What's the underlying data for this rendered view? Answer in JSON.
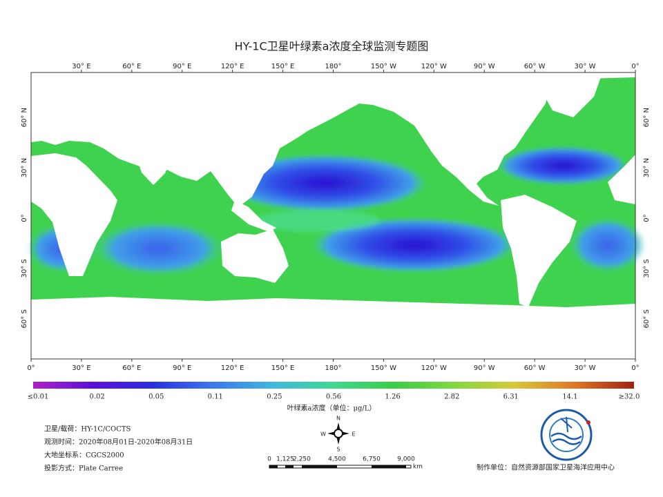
{
  "title": "HY-1C卫星叶绿素a浓度全球监测专题图",
  "map": {
    "top_lon_labels": [
      "30° E",
      "60° E",
      "90° E",
      "120° E",
      "150° E",
      "180°",
      "150° W",
      "120° W",
      "90° W",
      "60° W",
      "30° W",
      "0°"
    ],
    "bottom_lon_labels": [
      "0°",
      "30° E",
      "60° E",
      "90° E",
      "120° E",
      "150° E",
      "180°",
      "150° W",
      "120° W",
      "90° W",
      "60° W",
      "30° W",
      "0°"
    ],
    "lat_labels": [
      "60° N",
      "30° N",
      "0°",
      "30° S",
      "60° S"
    ]
  },
  "legend": {
    "labels": [
      "≤0.01",
      "0.02",
      "0.05",
      "0.11",
      "0.25",
      "0.56",
      "1.26",
      "2.82",
      "6.31",
      "14.1",
      "≥32.0"
    ],
    "caption": "叶绿素a浓度（单位：μg/L）"
  },
  "info": [
    "卫星/载荷：HY-1C/COCTS",
    "观测时间：2020年08月01日-2020年08月31日",
    "大地坐标系：CGCS2000",
    "投影方式：Plate Carree"
  ],
  "compass": {
    "n": "N",
    "s": "S",
    "e": "E",
    "w": "W"
  },
  "scale_bar": {
    "labels": [
      "0",
      "1,125",
      "2,250",
      "4,500",
      "6,750",
      "9,000"
    ],
    "unit": "km"
  },
  "producer": "制作单位：自然资源部国家卫星海洋应用中心"
}
